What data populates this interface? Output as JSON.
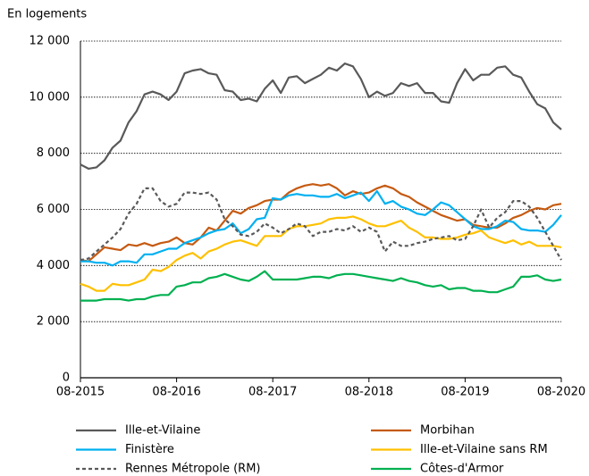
{
  "chart_data": {
    "type": "line",
    "y_label": "En logements",
    "categories": [
      "08-2015",
      null,
      null,
      null,
      null,
      null,
      null,
      null,
      null,
      null,
      null,
      null,
      "08-2016",
      null,
      null,
      null,
      null,
      null,
      null,
      null,
      null,
      null,
      null,
      null,
      "08-2017",
      null,
      null,
      null,
      null,
      null,
      null,
      null,
      null,
      null,
      null,
      null,
      "08-2018",
      null,
      null,
      null,
      null,
      null,
      null,
      null,
      null,
      null,
      null,
      null,
      "08-2019",
      null,
      null,
      null,
      null,
      null,
      null,
      null,
      null,
      null,
      null,
      null,
      "08-2020"
    ],
    "ylim": [
      0,
      12000
    ],
    "yticks": [
      0,
      {
        "value": 2000,
        "label": "2 000"
      },
      {
        "value": 4000,
        "label": "4 000"
      },
      {
        "value": 6000,
        "label": "6 000"
      },
      {
        "value": 8000,
        "label": "8 000"
      },
      {
        "value": 10000,
        "label": "10 000"
      },
      {
        "value": 12000,
        "label": "12 000"
      }
    ],
    "grid": true,
    "series": [
      {
        "name": "Ille-et-Vilaine",
        "color": "#595959",
        "style": "solid",
        "values": [
          7600,
          7450,
          7500,
          7750,
          8200,
          8450,
          9100,
          9500,
          10100,
          10200,
          10100,
          9900,
          10200,
          10850,
          10950,
          11000,
          10850,
          10800,
          10250,
          10200,
          9900,
          9950,
          9850,
          10300,
          10600,
          10150,
          10700,
          10750,
          10500,
          10650,
          10800,
          11050,
          10950,
          11200,
          11100,
          10650,
          10000,
          10200,
          10050,
          10150,
          10500,
          10400,
          10500,
          10150,
          10150,
          9850,
          9800,
          10500,
          11000,
          10600,
          10800,
          10800,
          11050,
          11100,
          10800,
          10700,
          10200,
          9750,
          9600,
          9100,
          8850
        ]
      },
      {
        "name": "Morbihan",
        "color": "#c55a11",
        "style": "solid",
        "values": [
          4200,
          4150,
          4400,
          4650,
          4600,
          4550,
          4750,
          4700,
          4800,
          4700,
          4800,
          4850,
          5000,
          4800,
          4750,
          5000,
          5350,
          5250,
          5600,
          5950,
          5850,
          6050,
          6150,
          6300,
          6350,
          6350,
          6600,
          6750,
          6850,
          6900,
          6850,
          6900,
          6750,
          6500,
          6650,
          6550,
          6600,
          6750,
          6850,
          6750,
          6550,
          6450,
          6250,
          6100,
          5950,
          5800,
          5700,
          5600,
          5650,
          5450,
          5400,
          5350,
          5350,
          5500,
          5700,
          5800,
          5950,
          6050,
          6000,
          6150,
          6200
        ]
      },
      {
        "name": "Finistère",
        "color": "#00b0f0",
        "style": "solid",
        "values": [
          4150,
          4150,
          4100,
          4100,
          4000,
          4150,
          4150,
          4100,
          4400,
          4400,
          4500,
          4600,
          4600,
          4800,
          4900,
          5000,
          5150,
          5250,
          5300,
          5500,
          5150,
          5300,
          5650,
          5700,
          6400,
          6350,
          6500,
          6550,
          6500,
          6500,
          6450,
          6450,
          6550,
          6400,
          6500,
          6600,
          6300,
          6650,
          6200,
          6300,
          6100,
          6000,
          5850,
          5800,
          6000,
          6250,
          6150,
          5900,
          5650,
          5400,
          5300,
          5300,
          5400,
          5600,
          5550,
          5300,
          5250,
          5250,
          5200,
          5450,
          5800
        ]
      },
      {
        "name": "Ille-et-Vilaine sans RM",
        "color": "#ffc000",
        "style": "solid",
        "values": [
          3350,
          3250,
          3100,
          3100,
          3350,
          3300,
          3300,
          3400,
          3500,
          3850,
          3800,
          3950,
          4200,
          4350,
          4450,
          4250,
          4500,
          4600,
          4750,
          4850,
          4900,
          4800,
          4700,
          5050,
          5050,
          5050,
          5300,
          5400,
          5400,
          5450,
          5500,
          5650,
          5700,
          5700,
          5750,
          5650,
          5500,
          5400,
          5400,
          5500,
          5600,
          5350,
          5200,
          5000,
          5000,
          4950,
          4950,
          5000,
          5100,
          5150,
          5250,
          5000,
          4900,
          4800,
          4900,
          4750,
          4850,
          4700,
          4700,
          4700,
          4650
        ]
      },
      {
        "name": "Rennes Métropole (RM)",
        "color": "#595959",
        "style": "dashed",
        "values": [
          4200,
          4250,
          4500,
          4750,
          5000,
          5300,
          5850,
          6200,
          6750,
          6750,
          6300,
          6100,
          6200,
          6600,
          6600,
          6550,
          6600,
          6350,
          5650,
          5400,
          5100,
          5050,
          5200,
          5500,
          5350,
          5150,
          5300,
          5500,
          5400,
          5050,
          5200,
          5200,
          5300,
          5250,
          5400,
          5200,
          5350,
          5200,
          4500,
          4850,
          4700,
          4700,
          4800,
          4850,
          4950,
          5000,
          5050,
          4900,
          4950,
          5400,
          6000,
          5350,
          5700,
          5900,
          6300,
          6300,
          6100,
          5700,
          5200,
          4700,
          4200
        ]
      },
      {
        "name": "Côtes-d'Armor",
        "color": "#00b050",
        "style": "solid",
        "values": [
          2750,
          2750,
          2750,
          2800,
          2800,
          2800,
          2750,
          2800,
          2800,
          2900,
          2950,
          2950,
          3250,
          3300,
          3400,
          3400,
          3550,
          3600,
          3700,
          3600,
          3500,
          3450,
          3600,
          3800,
          3500,
          3500,
          3500,
          3500,
          3550,
          3600,
          3600,
          3550,
          3650,
          3700,
          3700,
          3650,
          3600,
          3550,
          3500,
          3450,
          3550,
          3450,
          3400,
          3300,
          3250,
          3300,
          3150,
          3200,
          3200,
          3100,
          3100,
          3050,
          3050,
          3150,
          3250,
          3600,
          3600,
          3650,
          3500,
          3450,
          3500
        ]
      }
    ]
  }
}
